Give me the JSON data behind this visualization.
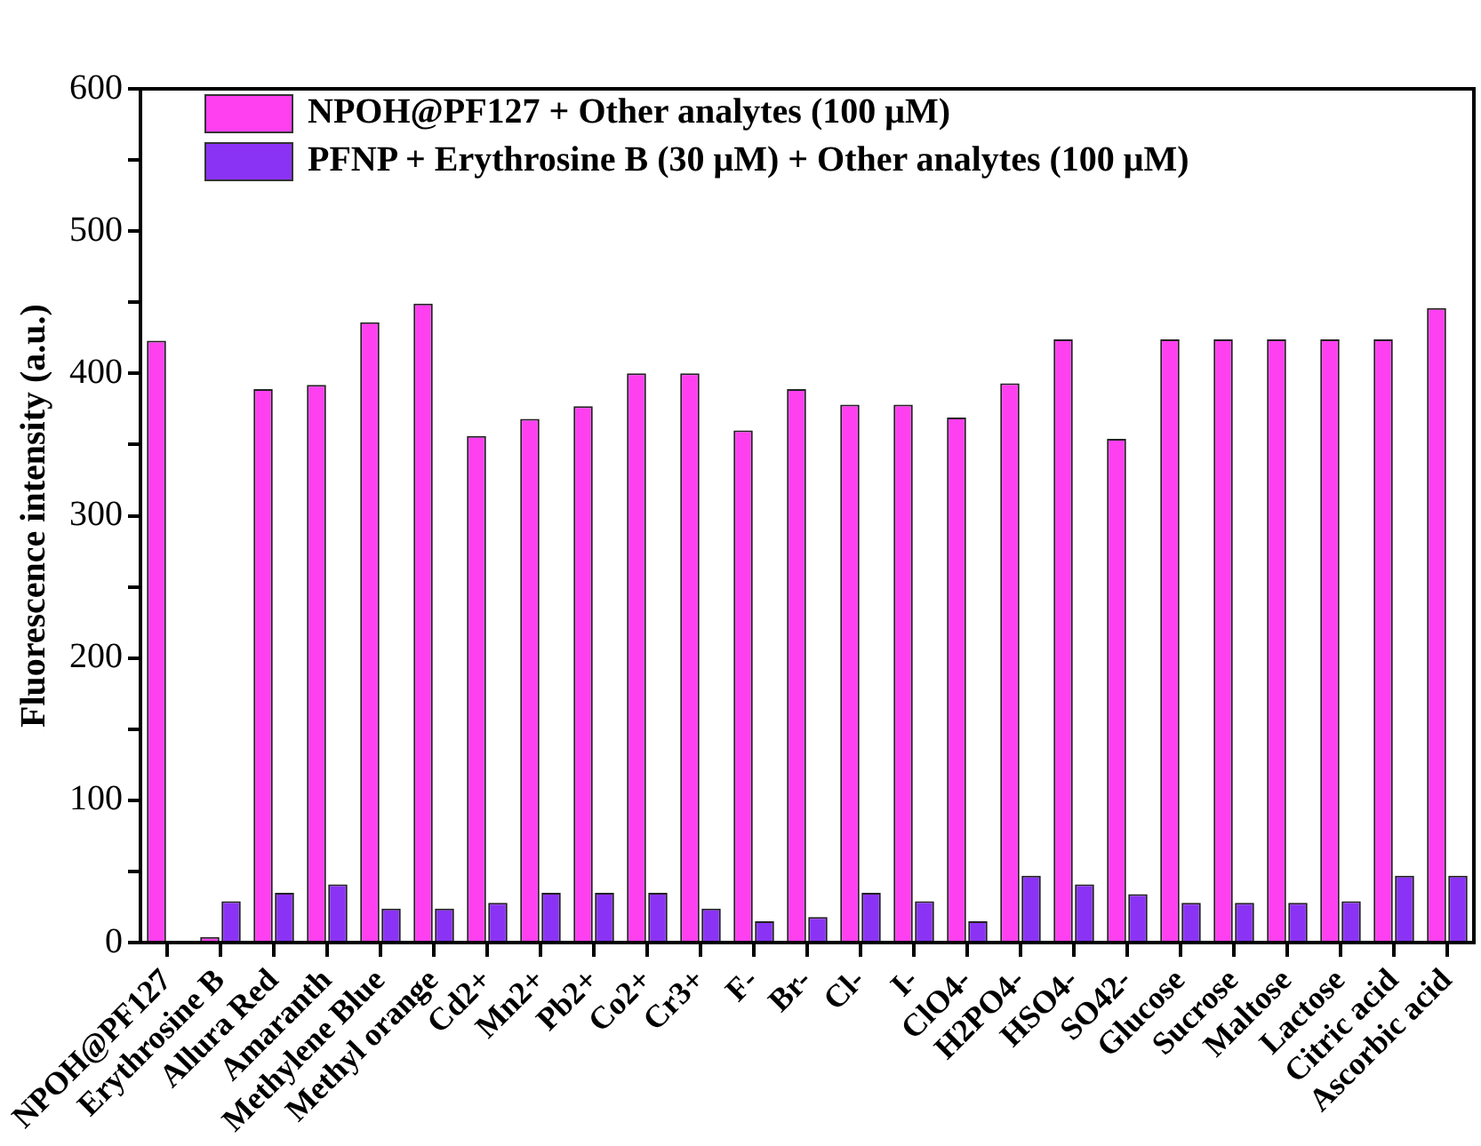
{
  "chart_data": {
    "type": "bar",
    "ylabel": "Fluorescence intensity (a.u.)",
    "categories": [
      "NPOH@PF127",
      "Erythrosine B",
      "Allura Red",
      "Amaranth",
      "Methylene Blue",
      "Methyl orange",
      "Cd2+",
      "Mn2+",
      "Pb2+",
      "Co2+",
      "Cr3+",
      "F-",
      "Br-",
      "Cl-",
      "I-",
      "ClO4-",
      "H2PO4-",
      "HSO4-",
      "SO42-",
      "Glucose",
      "Sucrose",
      "Maltose",
      "Lactose",
      "Citric acid",
      "Ascorbic acid"
    ],
    "series": [
      {
        "name": "NPOH@PF127 + Other analytes (100 μM)",
        "color": "#ff40f0",
        "values": [
          423,
          4,
          389,
          392,
          436,
          449,
          356,
          368,
          377,
          400,
          400,
          360,
          389,
          378,
          378,
          369,
          393,
          424,
          354,
          424,
          424,
          424,
          424,
          424,
          446
        ]
      },
      {
        "name": "PFNP + Erythrosine B (30 μM) + Other analytes (100 μM)",
        "color": "#8a33f5",
        "values": [
          null,
          29,
          35,
          41,
          24,
          24,
          28,
          35,
          35,
          35,
          24,
          15,
          18,
          35,
          29,
          15,
          47,
          41,
          34,
          28,
          28,
          28,
          29,
          47,
          47
        ]
      }
    ],
    "ylim": [
      0,
      600
    ],
    "yticks": [
      0,
      {
        "value": 50,
        "label": null
      },
      100,
      {
        "value": 150,
        "label": null
      },
      200,
      {
        "value": 250,
        "label": null
      },
      300,
      {
        "value": 350,
        "label": null
      },
      400,
      {
        "value": 450,
        "label": null
      },
      500,
      {
        "value": 550,
        "label": null
      },
      600
    ],
    "grid": false,
    "legend": "top left"
  }
}
